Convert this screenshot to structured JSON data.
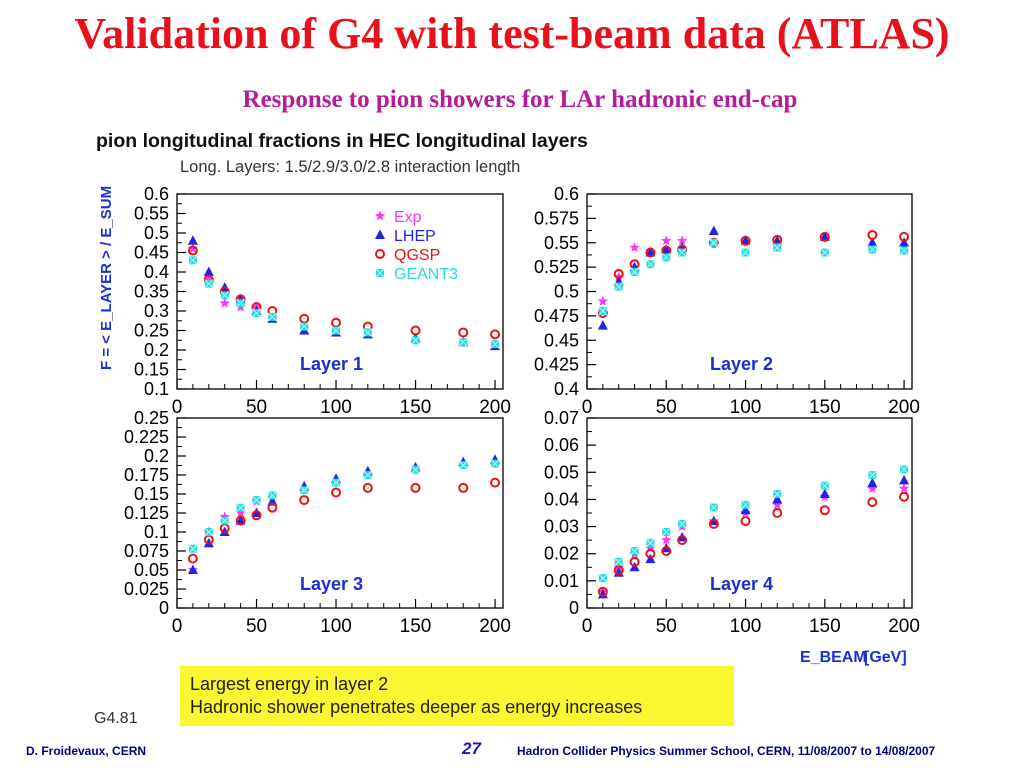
{
  "slide": {
    "title": "Validation of G4 with test-beam data (ATLAS)",
    "subtitle": "Response to pion showers for LAr hadronic end-cap"
  },
  "figure": {
    "heading": "pion longitudinal fractions in HEC longitudinal layers",
    "note": "Long. Layers: 1.5/2.9/3.0/2.8 interaction length",
    "ylabel": "F = < E_LAYER > / E_SUM",
    "xlabel": "E_BEAM",
    "xunit": "[GeV]"
  },
  "legend": [
    {
      "name": "Exp",
      "color": "#ff33ff",
      "marker": "star"
    },
    {
      "name": "LHEP",
      "color": "#2222ee",
      "marker": "triangle"
    },
    {
      "name": "QGSP",
      "color": "#ee1111",
      "marker": "circle"
    },
    {
      "name": "GEANT3",
      "color": "#22dddd",
      "marker": "square"
    }
  ],
  "chart_data": [
    {
      "type": "scatter",
      "panel": "Layer 1",
      "label": "Layer 1",
      "xlim": [
        0,
        205
      ],
      "ylim": [
        0.1,
        0.6
      ],
      "xticks": [
        0,
        50,
        100,
        150,
        200
      ],
      "yticks": [
        0.1,
        0.15,
        0.2,
        0.25,
        0.3,
        0.35,
        0.4,
        0.45,
        0.5,
        0.55,
        0.6
      ],
      "ytick_labels": [
        "0.1",
        "0.15",
        "0.2",
        "0.25",
        "0.3",
        "0.35",
        "0.4",
        "0.45",
        "0.5",
        "0.55",
        "0.6"
      ],
      "series": [
        {
          "name": "Exp",
          "x": [
            10,
            20,
            30,
            40,
            50,
            60
          ],
          "y": [
            0.46,
            0.38,
            0.32,
            0.31,
            0.31,
            0.28
          ]
        },
        {
          "name": "LHEP",
          "x": [
            10,
            20,
            30,
            40,
            50,
            60,
            80,
            100,
            120,
            150,
            180,
            200
          ],
          "y": [
            0.48,
            0.4,
            0.36,
            0.33,
            0.3,
            0.28,
            0.25,
            0.245,
            0.24,
            0.23,
            0.22,
            0.21
          ]
        },
        {
          "name": "QGSP",
          "x": [
            10,
            20,
            30,
            40,
            50,
            60,
            80,
            100,
            120,
            150,
            180,
            200
          ],
          "y": [
            0.455,
            0.38,
            0.35,
            0.33,
            0.31,
            0.3,
            0.28,
            0.27,
            0.26,
            0.25,
            0.245,
            0.24
          ]
        },
        {
          "name": "GEANT3",
          "x": [
            10,
            20,
            30,
            40,
            50,
            60,
            80,
            100,
            120,
            150,
            180,
            200
          ],
          "y": [
            0.43,
            0.37,
            0.34,
            0.32,
            0.295,
            0.285,
            0.26,
            0.25,
            0.245,
            0.225,
            0.22,
            0.215
          ]
        }
      ]
    },
    {
      "type": "scatter",
      "panel": "Layer 2",
      "label": "Layer 2",
      "xlim": [
        0,
        205
      ],
      "ylim": [
        0.4,
        0.6
      ],
      "xticks": [
        0,
        50,
        100,
        150,
        200
      ],
      "yticks": [
        0.4,
        0.425,
        0.45,
        0.475,
        0.5,
        0.525,
        0.55,
        0.575,
        0.6
      ],
      "ytick_labels": [
        "0.4",
        "0.425",
        "0.45",
        "0.475",
        "0.5",
        "0.525",
        "0.55",
        "0.575",
        "0.6"
      ],
      "series": [
        {
          "name": "Exp",
          "x": [
            10,
            20,
            30,
            40,
            50,
            60
          ],
          "y": [
            0.49,
            0.515,
            0.545,
            0.54,
            0.552,
            0.552
          ]
        },
        {
          "name": "LHEP",
          "x": [
            10,
            20,
            30,
            40,
            50,
            60,
            80,
            100,
            120,
            150,
            180,
            200
          ],
          "y": [
            0.465,
            0.51,
            0.525,
            0.54,
            0.543,
            0.545,
            0.562,
            0.552,
            0.552,
            0.556,
            0.55,
            0.55
          ]
        },
        {
          "name": "QGSP",
          "x": [
            10,
            20,
            30,
            40,
            50,
            60,
            80,
            100,
            120,
            150,
            180,
            200
          ],
          "y": [
            0.478,
            0.518,
            0.528,
            0.54,
            0.542,
            0.543,
            0.55,
            0.552,
            0.553,
            0.556,
            0.558,
            0.556
          ]
        },
        {
          "name": "GEANT3",
          "x": [
            10,
            20,
            30,
            40,
            50,
            60,
            80,
            100,
            120,
            150,
            180,
            200
          ],
          "y": [
            0.48,
            0.505,
            0.52,
            0.528,
            0.535,
            0.54,
            0.55,
            0.54,
            0.545,
            0.54,
            0.543,
            0.542
          ]
        }
      ]
    },
    {
      "type": "scatter",
      "panel": "Layer 3",
      "label": "Layer 3",
      "xlim": [
        0,
        205
      ],
      "ylim": [
        0,
        0.25
      ],
      "xticks": [
        0,
        50,
        100,
        150,
        200
      ],
      "yticks": [
        0,
        0.025,
        0.05,
        0.075,
        0.1,
        0.125,
        0.15,
        0.175,
        0.2,
        0.225,
        0.25
      ],
      "ytick_labels": [
        "0",
        "0.025",
        "0.05",
        "0.075",
        "0.1",
        "0.125",
        "0.15",
        "0.175",
        "0.2",
        "0.225",
        "0.25"
      ],
      "series": [
        {
          "name": "Exp",
          "x": [
            10,
            20,
            30,
            40,
            50,
            60
          ],
          "y": [
            0.05,
            0.1,
            0.12,
            0.125,
            0.14,
            0.145
          ]
        },
        {
          "name": "LHEP",
          "x": [
            10,
            20,
            30,
            40,
            50,
            60,
            80,
            100,
            120,
            150,
            180,
            200
          ],
          "y": [
            0.05,
            0.085,
            0.1,
            0.115,
            0.125,
            0.14,
            0.16,
            0.17,
            0.18,
            0.185,
            0.192,
            0.195
          ]
        },
        {
          "name": "QGSP",
          "x": [
            10,
            20,
            30,
            40,
            50,
            60,
            80,
            100,
            120,
            150,
            180,
            200
          ],
          "y": [
            0.065,
            0.09,
            0.105,
            0.115,
            0.122,
            0.132,
            0.142,
            0.152,
            0.158,
            0.158,
            0.158,
            0.165
          ]
        },
        {
          "name": "GEANT3",
          "x": [
            10,
            20,
            30,
            40,
            50,
            60,
            80,
            100,
            120,
            150,
            180,
            200
          ],
          "y": [
            0.078,
            0.1,
            0.115,
            0.132,
            0.142,
            0.148,
            0.155,
            0.165,
            0.175,
            0.182,
            0.188,
            0.19
          ]
        }
      ]
    },
    {
      "type": "scatter",
      "panel": "Layer 4",
      "label": "Layer 4",
      "xlim": [
        0,
        205
      ],
      "ylim": [
        0,
        0.07
      ],
      "xticks": [
        0,
        50,
        100,
        150,
        200
      ],
      "yticks": [
        0,
        0.01,
        0.02,
        0.03,
        0.04,
        0.05,
        0.06,
        0.07
      ],
      "ytick_labels": [
        "0",
        "0.01",
        "0.02",
        "0.03",
        "0.04",
        "0.05",
        "0.06",
        "0.07"
      ],
      "series": [
        {
          "name": "Exp",
          "x": [
            10,
            20,
            30,
            40,
            50,
            60,
            80,
            100,
            120,
            150,
            180,
            200
          ],
          "y": [
            0.006,
            0.015,
            0.02,
            0.022,
            0.025,
            0.03,
            0.032,
            0.035,
            0.038,
            0.041,
            0.044,
            0.044
          ]
        },
        {
          "name": "LHEP",
          "x": [
            10,
            20,
            30,
            40,
            50,
            60,
            80,
            100,
            120,
            150,
            180,
            200
          ],
          "y": [
            0.005,
            0.013,
            0.015,
            0.018,
            0.022,
            0.026,
            0.032,
            0.036,
            0.04,
            0.042,
            0.046,
            0.047
          ]
        },
        {
          "name": "QGSP",
          "x": [
            10,
            20,
            30,
            40,
            50,
            60,
            80,
            100,
            120,
            150,
            180,
            200
          ],
          "y": [
            0.006,
            0.014,
            0.017,
            0.02,
            0.021,
            0.025,
            0.031,
            0.032,
            0.035,
            0.036,
            0.039,
            0.041
          ]
        },
        {
          "name": "GEANT3",
          "x": [
            10,
            20,
            30,
            40,
            50,
            60,
            80,
            100,
            120,
            150,
            180,
            200
          ],
          "y": [
            0.011,
            0.017,
            0.021,
            0.024,
            0.028,
            0.031,
            0.037,
            0.038,
            0.042,
            0.045,
            0.049,
            0.051
          ]
        }
      ]
    }
  ],
  "notes": {
    "line1": "Largest energy in layer 2",
    "line2": "Hadronic shower penetrates deeper as energy increases"
  },
  "version": "G4.81",
  "footer": {
    "author": "D. Froidevaux, CERN",
    "page": "27",
    "event": "Hadron Collider Physics Summer School, CERN, 11/08/2007 to 14/08/2007"
  }
}
